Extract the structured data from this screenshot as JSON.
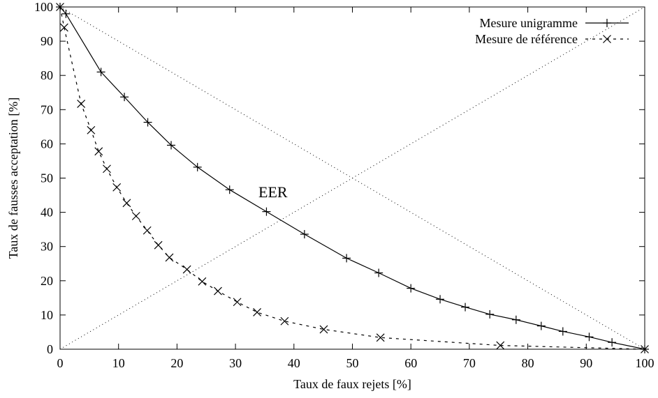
{
  "chart_data": {
    "type": "line",
    "title": "",
    "xlabel": "Taux de faux rejets [%]",
    "ylabel": "Taux de fausses acceptation [%]",
    "xlim": [
      0,
      100
    ],
    "ylim": [
      0,
      100
    ],
    "xticks": [
      "0",
      "10",
      "20",
      "30",
      "40",
      "50",
      "60",
      "70",
      "80",
      "90",
      "100"
    ],
    "yticks": [
      "0",
      "10",
      "20",
      "30",
      "40",
      "50",
      "60",
      "70",
      "80",
      "90",
      "100"
    ],
    "grid": false,
    "legend_position": "top-right",
    "annotation": "EER",
    "series": [
      {
        "name": "Mesure unigramme",
        "line_style": "solid",
        "marker": "+",
        "x": [
          0,
          1,
          7,
          11,
          15,
          19,
          23.5,
          29,
          35.3,
          41.8,
          49,
          54.5,
          60,
          65,
          69.3,
          73.5,
          78,
          82.3,
          86,
          90.5,
          94.4,
          100
        ],
        "y": [
          100,
          98,
          81,
          73.7,
          66.3,
          59.6,
          53.2,
          46.6,
          40.2,
          33.6,
          26.6,
          22.3,
          17.8,
          14.6,
          12.3,
          10.2,
          8.6,
          6.8,
          5.2,
          3.6,
          2.0,
          0
        ]
      },
      {
        "name": "Mesure de référence",
        "line_style": "dashed",
        "marker": "x",
        "x": [
          0,
          0.7,
          3.6,
          5.3,
          6.6,
          8.0,
          9.7,
          11.4,
          13.0,
          14.9,
          16.8,
          18.7,
          21.7,
          24.3,
          27.0,
          30.3,
          33.7,
          38.4,
          45.1,
          54.8,
          75.3,
          100
        ],
        "y": [
          100,
          94,
          71.7,
          64.0,
          57.8,
          52.7,
          47.3,
          42.7,
          38.9,
          34.7,
          30.4,
          26.8,
          23.3,
          19.8,
          17.0,
          13.8,
          10.8,
          8.2,
          5.8,
          3.4,
          1.1,
          0
        ]
      }
    ]
  }
}
